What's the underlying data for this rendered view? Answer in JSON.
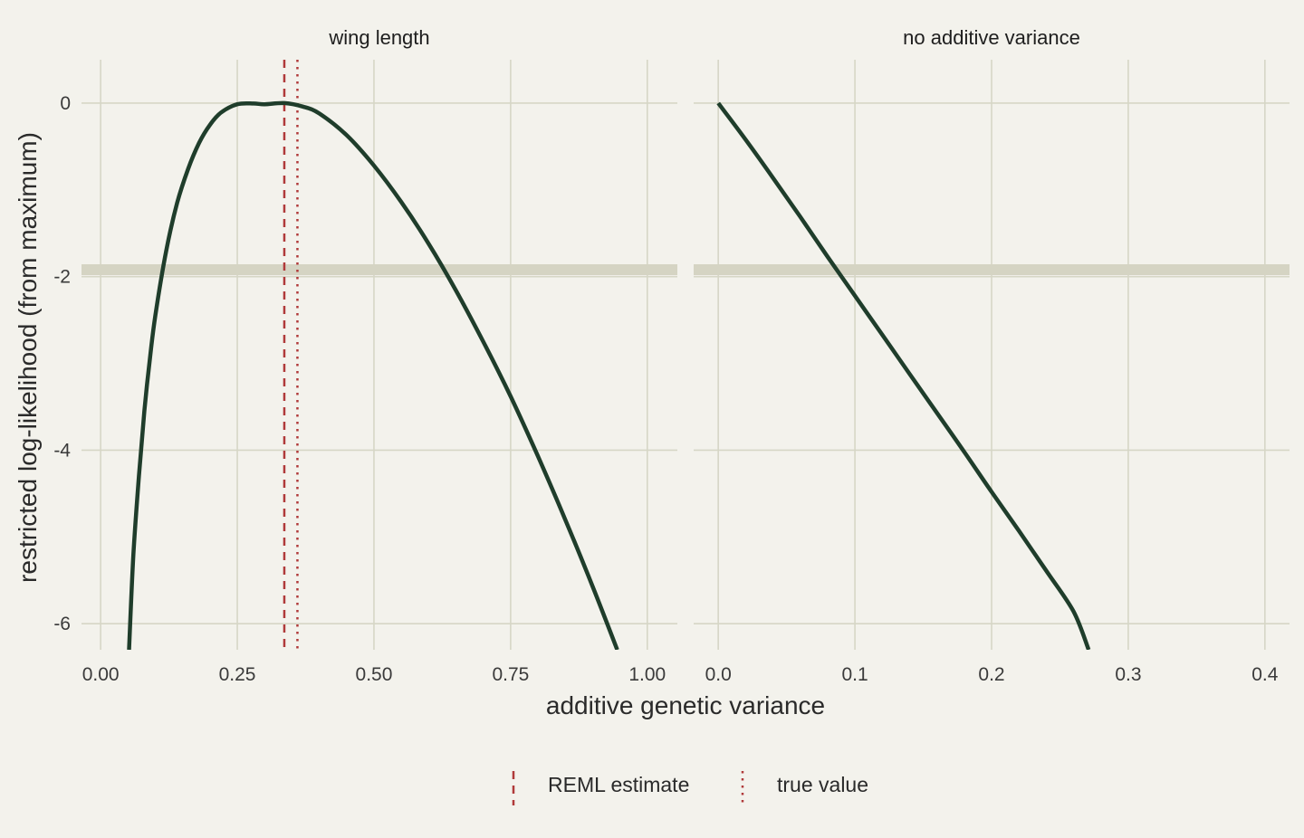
{
  "colors": {
    "background": "#f3f2ec",
    "grid": "#d6d6c6",
    "threshold_band": "#d5d4c3",
    "curve": "#1f3d2b",
    "estimate_line": "#b03a3a",
    "true_line": "#b03a3a"
  },
  "chart_data": {
    "type": "line",
    "xlabel": "additive genetic variance",
    "ylabel": "restricted log-likelihood (from maximum)",
    "grid": true,
    "legend_position": "bottom",
    "ylim": [
      -6.3,
      0.5
    ],
    "y_ticks": [
      "0",
      "-2",
      "-4",
      "-6"
    ],
    "y_tick_values": [
      0,
      -2,
      -4,
      -6
    ],
    "threshold_y": -1.92,
    "legend": [
      {
        "label": "REML estimate",
        "linetype": "dashed"
      },
      {
        "label": "true value",
        "linetype": "dotted"
      }
    ],
    "panels": [
      {
        "title": "wing length",
        "xlim": [
          -0.035,
          1.055
        ],
        "x_ticks": [
          "0.00",
          "0.25",
          "0.50",
          "0.75",
          "1.00"
        ],
        "x_tick_values": [
          0,
          0.25,
          0.5,
          0.75,
          1.0
        ],
        "reml_estimate": 0.336,
        "true_value": 0.36,
        "series": [
          {
            "x": [
              0.052,
              0.06,
              0.07,
              0.08,
              0.09,
              0.1,
              0.12,
              0.14,
              0.16,
              0.18,
              0.2,
              0.22,
              0.25,
              0.28,
              0.3,
              0.336,
              0.37,
              0.4,
              0.45,
              0.5,
              0.55,
              0.6,
              0.65,
              0.7,
              0.75,
              0.8,
              0.85,
              0.9,
              0.945
            ],
            "y": [
              -6.3,
              -5.2,
              -4.3,
              -3.55,
              -2.95,
              -2.45,
              -1.7,
              -1.15,
              -0.76,
              -0.46,
              -0.25,
              -0.11,
              -0.013,
              -0.005,
              -0.013,
              0,
              -0.04,
              -0.12,
              -0.37,
              -0.72,
              -1.14,
              -1.62,
              -2.16,
              -2.75,
              -3.38,
              -4.07,
              -4.8,
              -5.57,
              -6.3
            ]
          }
        ]
      },
      {
        "title": "no additive variance",
        "xlim": [
          -0.018,
          0.418
        ],
        "x_ticks": [
          "0.0",
          "0.1",
          "0.2",
          "0.3",
          "0.4"
        ],
        "x_tick_values": [
          0,
          0.1,
          0.2,
          0.3,
          0.4
        ],
        "series": [
          {
            "x": [
              0,
              0.02,
              0.04,
              0.06,
              0.08,
              0.1,
              0.12,
              0.14,
              0.16,
              0.18,
              0.2,
              0.22,
              0.24,
              0.26,
              0.271
            ],
            "y": [
              0,
              -0.42,
              -0.86,
              -1.31,
              -1.77,
              -2.22,
              -2.67,
              -3.12,
              -3.57,
              -4.02,
              -4.48,
              -4.93,
              -5.39,
              -5.86,
              -6.3
            ]
          }
        ]
      }
    ]
  }
}
